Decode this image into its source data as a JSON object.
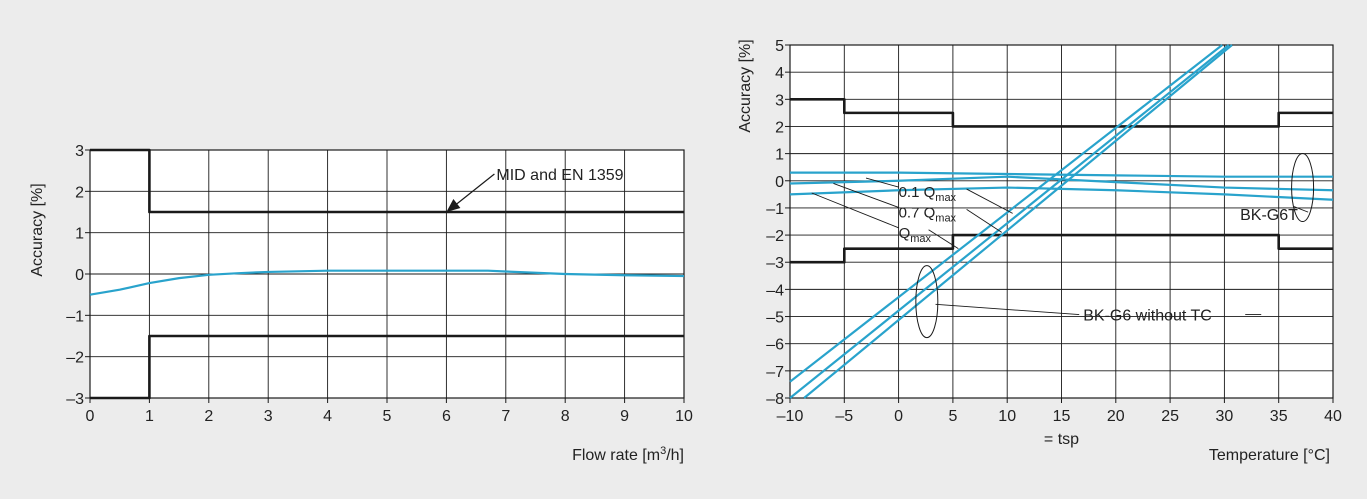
{
  "colors": {
    "background": "#ececec",
    "plot_background": "#ffffff",
    "limit_line": "#1a1a1a",
    "measured_curve": "#29a3cc",
    "grid": "#1a1a1a"
  },
  "chart_data": [
    {
      "type": "line",
      "ylabel": "Accuracy [%]",
      "xlabel_text": "Flow rate [m",
      "xlabel_sup": "3",
      "xlabel_tail": "/h]",
      "xlim": [
        0,
        10
      ],
      "ylim": [
        -3,
        3
      ],
      "x_ticks": [
        0,
        1,
        2,
        3,
        4,
        5,
        6,
        7,
        8,
        9,
        10
      ],
      "y_ticks": [
        -3,
        -2,
        -1,
        0,
        1,
        2,
        3
      ],
      "grid": true,
      "annotations": [
        {
          "text": "MID and EN 1359",
          "x": 6,
          "y": 1.5
        }
      ],
      "series": [
        {
          "role": "limit",
          "x": [
            0,
            1,
            1,
            10
          ],
          "y": [
            3,
            3,
            1.5,
            1.5
          ]
        },
        {
          "role": "limit",
          "x": [
            0,
            1,
            1,
            10
          ],
          "y": [
            -3,
            -3,
            -1.5,
            -1.5
          ]
        },
        {
          "role": "measured",
          "x": [
            0,
            0.5,
            1,
            1.5,
            2,
            2.5,
            3,
            4,
            5,
            6,
            6.7,
            7,
            8,
            9,
            10
          ],
          "y": [
            -0.5,
            -0.38,
            -0.22,
            -0.1,
            -0.02,
            0.02,
            0.05,
            0.08,
            0.08,
            0.08,
            0.08,
            0.06,
            0.0,
            -0.03,
            -0.05
          ]
        }
      ]
    },
    {
      "type": "line",
      "ylabel": "Accuracy [%]",
      "xlabel": "Temperature [°C]",
      "x_note": "= tsp",
      "xlim": [
        -10,
        40
      ],
      "ylim": [
        -8,
        5
      ],
      "x_ticks": [
        -10,
        -5,
        0,
        5,
        10,
        15,
        20,
        25,
        30,
        35,
        40
      ],
      "y_ticks": [
        -8,
        -7,
        -6,
        -5,
        -4,
        -3,
        -2,
        -1,
        0,
        1,
        2,
        3,
        4,
        5
      ],
      "grid": true,
      "annotations": [
        {
          "text": "0.1 Q",
          "sub": "max",
          "x": 0,
          "y": -0.6
        },
        {
          "text": "0.7 Q",
          "sub": "max",
          "x": 0,
          "y": -1.35
        },
        {
          "text": "Q",
          "sub": "max",
          "x": 0,
          "y": -2.1
        },
        {
          "text": "BK-G6T",
          "x": 32,
          "y": -1.45
        },
        {
          "text": "BK-G6 without TC",
          "x": 17,
          "y": -5.15
        }
      ],
      "series": [
        {
          "role": "limit",
          "x": [
            -10,
            -5,
            -5,
            5,
            5,
            35,
            35,
            40
          ],
          "y": [
            3,
            3,
            2.5,
            2.5,
            2,
            2,
            2.5,
            2.5
          ]
        },
        {
          "role": "limit",
          "x": [
            -10,
            -5,
            -5,
            5,
            5,
            35,
            35,
            40
          ],
          "y": [
            -3,
            -3,
            -2.5,
            -2.5,
            -2,
            -2,
            -2.5,
            -2.5
          ]
        },
        {
          "role": "measured",
          "x": [
            -10,
            0,
            10,
            20,
            30,
            40
          ],
          "y": [
            0.3,
            0.3,
            0.25,
            0.2,
            0.15,
            0.15
          ]
        },
        {
          "role": "measured",
          "x": [
            -10,
            0,
            10,
            20,
            30,
            40
          ],
          "y": [
            -0.1,
            0.0,
            0.15,
            -0.05,
            -0.25,
            -0.35
          ]
        },
        {
          "role": "measured",
          "x": [
            -10,
            0,
            10,
            20,
            30,
            40
          ],
          "y": [
            -0.5,
            -0.35,
            -0.25,
            -0.35,
            -0.5,
            -0.7
          ]
        },
        {
          "role": "measured",
          "x": [
            -10,
            30.4
          ],
          "y": [
            -8.0,
            5.0
          ]
        },
        {
          "role": "measured",
          "x": [
            -8.7,
            30.7
          ],
          "y": [
            -8.0,
            5.0
          ]
        },
        {
          "role": "measured",
          "x": [
            -10,
            29.8
          ],
          "y": [
            -7.4,
            5.0
          ]
        }
      ]
    }
  ]
}
